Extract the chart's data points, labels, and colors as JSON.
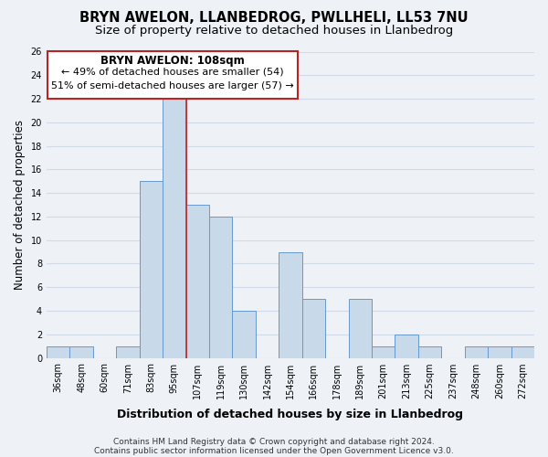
{
  "title": "BRYN AWELON, LLANBEDROG, PWLLHELI, LL53 7NU",
  "subtitle": "Size of property relative to detached houses in Llanbedrog",
  "xlabel": "Distribution of detached houses by size in Llanbedrog",
  "ylabel": "Number of detached properties",
  "bin_labels": [
    "36sqm",
    "48sqm",
    "60sqm",
    "71sqm",
    "83sqm",
    "95sqm",
    "107sqm",
    "119sqm",
    "130sqm",
    "142sqm",
    "154sqm",
    "166sqm",
    "178sqm",
    "189sqm",
    "201sqm",
    "213sqm",
    "225sqm",
    "237sqm",
    "248sqm",
    "260sqm",
    "272sqm"
  ],
  "bar_heights": [
    1,
    1,
    0,
    1,
    15,
    22,
    13,
    12,
    4,
    0,
    9,
    5,
    0,
    5,
    1,
    2,
    1,
    0,
    1,
    1,
    1
  ],
  "bar_color": "#c8daea",
  "bar_edge_color": "#6699cc",
  "ylim": [
    0,
    26
  ],
  "yticks": [
    0,
    2,
    4,
    6,
    8,
    10,
    12,
    14,
    16,
    18,
    20,
    22,
    24,
    26
  ],
  "annotation_title": "BRYN AWELON: 108sqm",
  "annotation_line1": "← 49% of detached houses are smaller (54)",
  "annotation_line2": "51% of semi-detached houses are larger (57) →",
  "vline_x_index": 5.5,
  "footnote1": "Contains HM Land Registry data © Crown copyright and database right 2024.",
  "footnote2": "Contains public sector information licensed under the Open Government Licence v3.0.",
  "background_color": "#eef2f7",
  "grid_color": "#d0dae8",
  "title_fontsize": 10.5,
  "subtitle_fontsize": 9.5,
  "xlabel_fontsize": 9,
  "ylabel_fontsize": 8.5,
  "tick_fontsize": 7,
  "footnote_fontsize": 6.5,
  "annot_title_fontsize": 8.5,
  "annot_text_fontsize": 8
}
